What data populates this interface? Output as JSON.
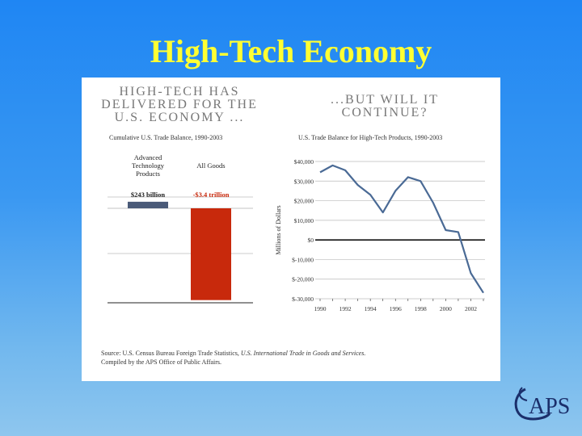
{
  "slide": {
    "title": "High-Tech Economy"
  },
  "left_panel": {
    "heading": "HIGH-TECH HAS DELIVERED FOR THE U.S. ECONOMY ...",
    "subtitle": "Cumulative U.S. Trade Balance, 1990-2003"
  },
  "right_panel": {
    "heading": "...BUT WILL IT CONTINUE?",
    "subtitle": "U.S. Trade Balance for High-Tech Products, 1990-2003"
  },
  "source": {
    "line1_prefix": "Source: U.S. Census Bureau Foreign Trade Statistics, ",
    "line1_italic": "U.S. International Trade in Goods and Services.",
    "line2": "Compiled by the APS Office of Public Affairs."
  },
  "logo": {
    "text": "APS"
  },
  "colors": {
    "title": "#ffff33",
    "bar_atp": "#4a5a78",
    "bar_all": "#c8290c",
    "line": "#4a6a95",
    "label_neg": "#c8290c"
  },
  "chart_data": [
    {
      "type": "bar",
      "title": "Cumulative U.S. Trade Balance, 1990-2003",
      "categories": [
        "Advanced Technology Products",
        "All Goods"
      ],
      "values": [
        243,
        -3400
      ],
      "value_labels": [
        "$243 billion",
        "-$3.4 trillion"
      ],
      "units": "billions of dollars",
      "ylim": [
        -3500,
        500
      ],
      "grid": true
    },
    {
      "type": "line",
      "title": "U.S. Trade Balance for High-Tech Products, 1990-2003",
      "ylabel": "Millions of Dollars",
      "x": [
        1990,
        1991,
        1992,
        1993,
        1994,
        1995,
        1996,
        1997,
        1998,
        1999,
        2000,
        2001,
        2002,
        2003
      ],
      "series": [
        {
          "values": [
            34500,
            38000,
            35500,
            28000,
            23000,
            14000,
            25000,
            32000,
            30000,
            19000,
            5000,
            4000,
            -17000,
            -27000
          ]
        }
      ],
      "xticks": [
        "1990",
        "1992",
        "1994",
        "1996",
        "1998",
        "2000",
        "2002"
      ],
      "yticks": [
        "$40,000",
        "$30,000",
        "$20,000",
        "$10,000",
        "$0",
        "$-10,000",
        "$-20,000",
        "$-30,000"
      ],
      "ylim": [
        -30000,
        40000
      ],
      "grid": true
    }
  ]
}
